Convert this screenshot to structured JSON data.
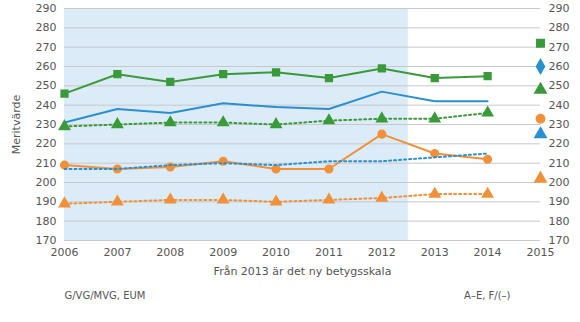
{
  "chart_data": {
    "type": "line",
    "x": [
      2006,
      2007,
      2008,
      2009,
      2010,
      2011,
      2012,
      2013,
      2014,
      2015
    ],
    "xlabel": "Från 2013 är det ny betygsskala",
    "ylabel": "Meritvärde",
    "xlim": [
      2006,
      2015
    ],
    "xticks": [
      2006,
      2007,
      2008,
      2009,
      2010,
      2011,
      2012,
      2013,
      2014,
      2015
    ],
    "ylim": [
      170,
      290
    ],
    "yticks": [
      170,
      180,
      190,
      200,
      210,
      220,
      230,
      240,
      250,
      260,
      270,
      280,
      290
    ],
    "y2lim": [
      170,
      290
    ],
    "y2ticks": [
      170,
      180,
      190,
      200,
      210,
      220,
      230,
      240,
      250,
      260,
      270,
      280,
      290
    ],
    "grid": true,
    "annotations": [
      "G/VG/MVG, EUM",
      "A–E, F/(–)"
    ],
    "shaded_region": {
      "xlim": [
        2006,
        2012.5
      ]
    },
    "series": [
      {
        "type": "line",
        "color": "#3a9a3a",
        "marker": "square",
        "line_style": "solid",
        "values": [
          246,
          256,
          252,
          256,
          257,
          254,
          259,
          254,
          255,
          null
        ]
      },
      {
        "type": "line",
        "color": "#2a8fd0",
        "marker": "none",
        "line_style": "solid",
        "values": [
          231,
          238,
          236,
          241,
          239,
          238,
          247,
          242,
          242,
          null
        ]
      },
      {
        "type": "line",
        "color": "#3a9a3a",
        "marker": "triangle",
        "line_style": "dotted",
        "values": [
          229,
          230,
          231,
          231,
          230,
          232,
          233,
          233,
          236,
          null
        ]
      },
      {
        "type": "line",
        "color": "#f0913a",
        "marker": "circle",
        "line_style": "solid",
        "values": [
          209,
          207,
          208,
          211,
          207,
          207,
          225,
          215,
          212,
          null
        ]
      },
      {
        "type": "line",
        "color": "#2a8fd0",
        "marker": "none",
        "line_style": "dotted",
        "values": [
          207,
          207,
          209,
          210,
          209,
          211,
          211,
          213,
          215,
          null
        ]
      },
      {
        "type": "line",
        "color": "#f0913a",
        "marker": "triangle",
        "line_style": "dotted",
        "values": [
          189,
          190,
          191,
          191,
          190,
          191,
          192,
          194,
          194,
          null
        ]
      },
      {
        "type": "scatter",
        "color": "#3a9a3a",
        "marker": "square",
        "values": [
          null,
          null,
          null,
          null,
          null,
          null,
          null,
          null,
          null,
          272
        ]
      },
      {
        "type": "scatter",
        "color": "#2a8fd0",
        "marker": "diamond",
        "values": [
          null,
          null,
          null,
          null,
          null,
          null,
          null,
          null,
          null,
          260
        ]
      },
      {
        "type": "scatter",
        "color": "#3a9a3a",
        "marker": "triangle",
        "values": [
          null,
          null,
          null,
          null,
          null,
          null,
          null,
          null,
          null,
          248
        ]
      },
      {
        "type": "scatter",
        "color": "#f0913a",
        "marker": "circle",
        "values": [
          null,
          null,
          null,
          null,
          null,
          null,
          null,
          null,
          null,
          233
        ]
      },
      {
        "type": "scatter",
        "color": "#2a8fd0",
        "marker": "triangle",
        "values": [
          null,
          null,
          null,
          null,
          null,
          null,
          null,
          null,
          null,
          225
        ]
      },
      {
        "type": "scatter",
        "color": "#f0913a",
        "marker": "triangle",
        "values": [
          null,
          null,
          null,
          null,
          null,
          null,
          null,
          null,
          null,
          202
        ]
      }
    ]
  }
}
